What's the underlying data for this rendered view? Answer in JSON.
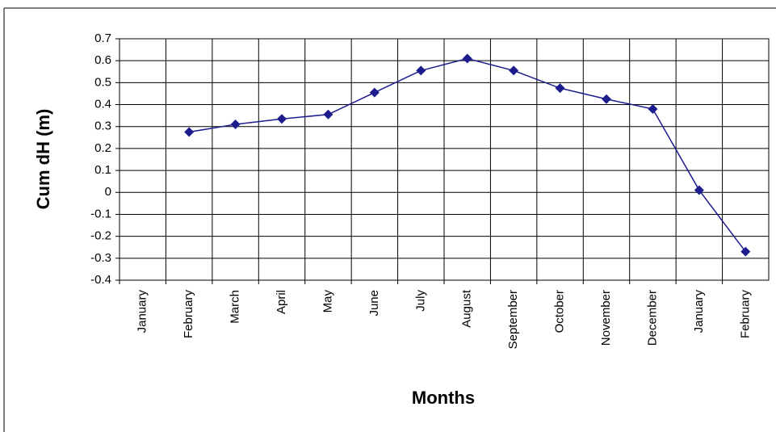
{
  "chart_data": {
    "type": "line",
    "x_label": "Months",
    "y_label": "Cum dH (m)",
    "categories": [
      "January",
      "February",
      "March",
      "April",
      "May",
      "June",
      "July",
      "August",
      "September",
      "October",
      "November",
      "December",
      "January",
      "February"
    ],
    "series": [
      {
        "color": "#1c1c8e",
        "values": [
          null,
          0.275,
          0.31,
          0.335,
          0.355,
          0.455,
          0.555,
          0.61,
          0.555,
          0.475,
          0.425,
          0.38,
          0.01,
          -0.27
        ]
      }
    ],
    "ylim": [
      -0.4,
      0.7
    ],
    "yticks": [
      0.7,
      0.6,
      0.5,
      0.4,
      0.3,
      0.2,
      0.1,
      0,
      -0.1,
      -0.2,
      -0.3,
      -0.4
    ],
    "grid": true
  }
}
